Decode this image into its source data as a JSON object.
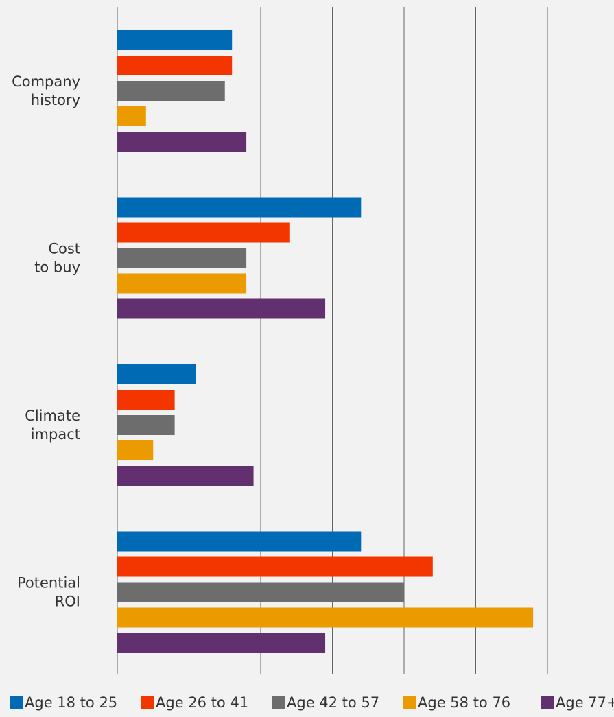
{
  "chart_data": {
    "type": "bar",
    "orientation": "horizontal",
    "categories": [
      [
        "Company",
        "history"
      ],
      [
        "Cost",
        "to buy"
      ],
      [
        "Climate",
        "impact"
      ],
      [
        "Potential",
        "ROI"
      ]
    ],
    "series": [
      {
        "name": "Age 18 to 25",
        "color": "#006ab4",
        "values": [
          16,
          34,
          11,
          34
        ]
      },
      {
        "name": "Age 26 to 41",
        "color": "#f33500",
        "values": [
          16,
          24,
          8,
          44
        ]
      },
      {
        "name": "Age 42 to 57",
        "color": "#6d6d6d",
        "values": [
          15,
          18,
          8,
          40
        ]
      },
      {
        "name": "Age 58 to 76",
        "color": "#eb9a00",
        "values": [
          4,
          18,
          5,
          58
        ]
      },
      {
        "name": "Age 77+",
        "color": "#63306f",
        "values": [
          18,
          29,
          19,
          29
        ]
      }
    ],
    "xlim": [
      0,
      60
    ],
    "grid": true,
    "legend": "bottom",
    "title": "",
    "xlabel": "",
    "ylabel": ""
  }
}
